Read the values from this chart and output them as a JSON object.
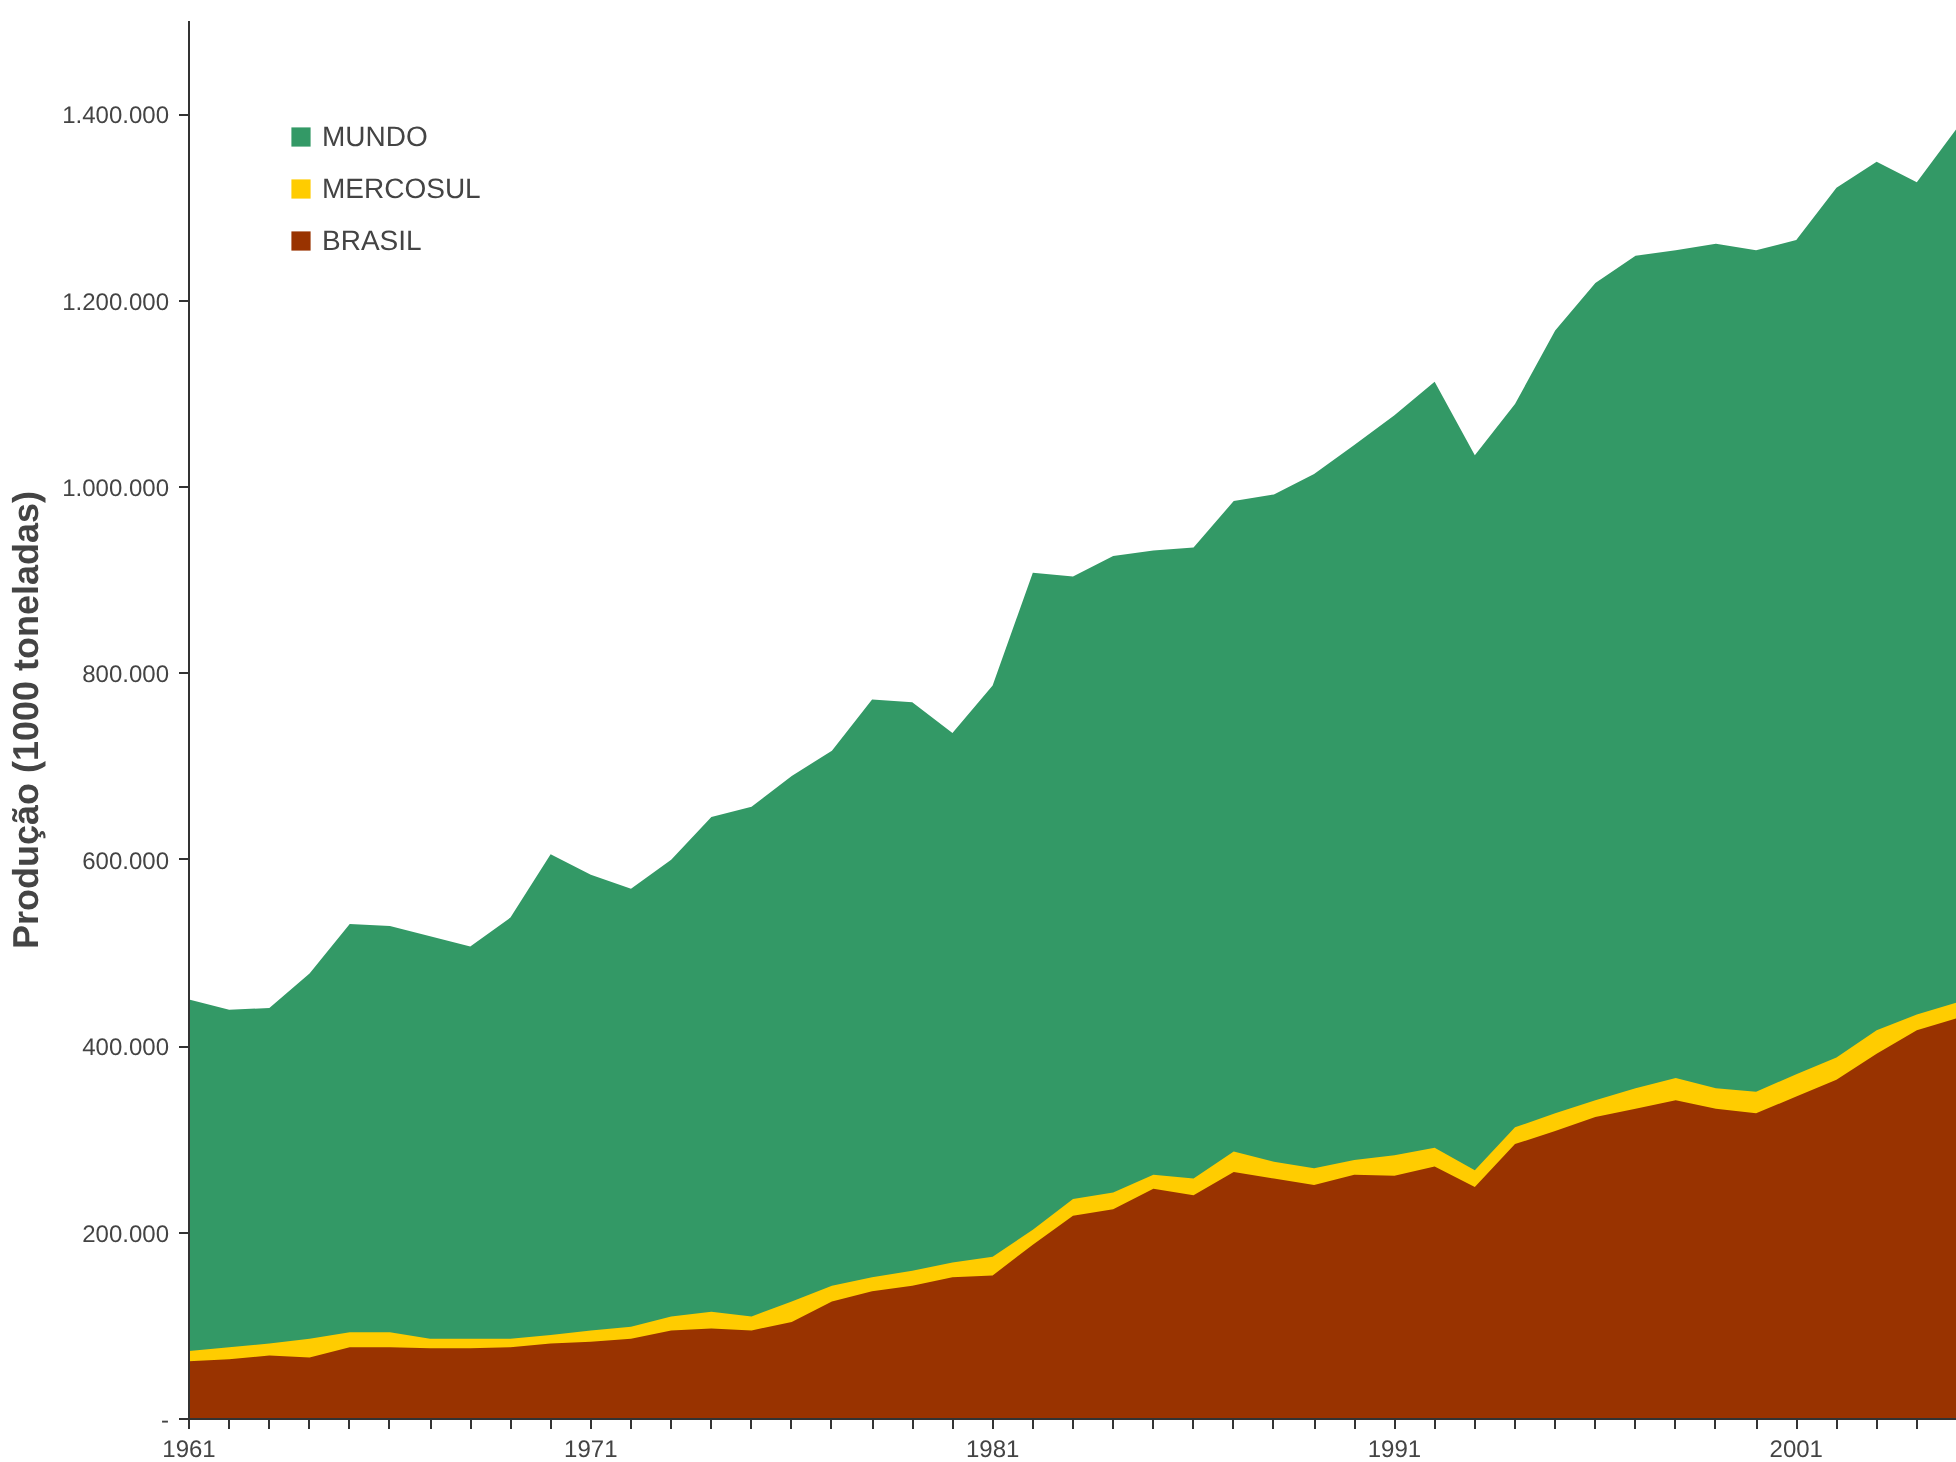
{
  "chart_data": {
    "type": "area",
    "ylabel": "Produção (1000 toneladas)",
    "x": [
      1961,
      1962,
      1963,
      1964,
      1965,
      1966,
      1967,
      1968,
      1969,
      1970,
      1971,
      1972,
      1973,
      1974,
      1975,
      1976,
      1977,
      1978,
      1979,
      1980,
      1981,
      1982,
      1983,
      1984,
      1985,
      1986,
      1987,
      1988,
      1989,
      1990,
      1991,
      1992,
      1993,
      1994,
      1995,
      1996,
      1997,
      1998,
      1999,
      2000,
      2001,
      2002,
      2003,
      2004,
      2005
    ],
    "series": [
      {
        "name": "MUNDO",
        "color": "#339966",
        "values": [
          450000,
          439000,
          441000,
          478000,
          531000,
          529000,
          518000,
          507000,
          538000,
          606000,
          584000,
          569000,
          600000,
          646000,
          657000,
          690000,
          717000,
          772000,
          769000,
          736000,
          787000,
          908000,
          904000,
          926000,
          932000,
          935000,
          985000,
          992000,
          1014000,
          1045000,
          1077000,
          1113000,
          1034000,
          1089000,
          1168000,
          1219000,
          1248000,
          1254000,
          1261000,
          1254000,
          1265000,
          1321000,
          1349000,
          1327000,
          1385000
        ]
      },
      {
        "name": "MERCOSUL",
        "color": "#ffcc00",
        "values": [
          73000,
          77000,
          81000,
          86000,
          93000,
          93000,
          86000,
          86000,
          86000,
          90000,
          95000,
          99000,
          110000,
          115000,
          110000,
          126000,
          143000,
          152000,
          159000,
          168000,
          174000,
          203000,
          236000,
          243000,
          262000,
          258000,
          287000,
          276000,
          269000,
          278000,
          283000,
          291000,
          267000,
          313000,
          328000,
          342000,
          355000,
          366000,
          355000,
          351000,
          370000,
          388000,
          417000,
          434000,
          447000
        ]
      },
      {
        "name": "BRASIL",
        "color": "#993300",
        "values": [
          62000,
          64000,
          68000,
          66000,
          77000,
          77000,
          76000,
          76000,
          77000,
          81000,
          83000,
          86000,
          95000,
          97000,
          95000,
          104000,
          126000,
          137000,
          143000,
          152000,
          154000,
          187000,
          218000,
          225000,
          247000,
          240000,
          265000,
          258000,
          251000,
          262000,
          261000,
          271000,
          249000,
          295000,
          309000,
          324000,
          333000,
          342000,
          333000,
          328000,
          346000,
          364000,
          392000,
          417000,
          430000
        ]
      }
    ],
    "xlim": [
      1961,
      2005
    ],
    "xticks": [
      1961,
      {
        "value": 1962,
        "label": null
      },
      {
        "value": 1963,
        "label": null
      },
      {
        "value": 1964,
        "label": null
      },
      {
        "value": 1965,
        "label": null
      },
      {
        "value": 1966,
        "label": null
      },
      {
        "value": 1967,
        "label": null
      },
      {
        "value": 1968,
        "label": null
      },
      {
        "value": 1969,
        "label": null
      },
      {
        "value": 1970,
        "label": null
      },
      1971,
      {
        "value": 1972,
        "label": null
      },
      {
        "value": 1973,
        "label": null
      },
      {
        "value": 1974,
        "label": null
      },
      {
        "value": 1975,
        "label": null
      },
      {
        "value": 1976,
        "label": null
      },
      {
        "value": 1977,
        "label": null
      },
      {
        "value": 1978,
        "label": null
      },
      {
        "value": 1979,
        "label": null
      },
      {
        "value": 1980,
        "label": null
      },
      1981,
      {
        "value": 1982,
        "label": null
      },
      {
        "value": 1983,
        "label": null
      },
      {
        "value": 1984,
        "label": null
      },
      {
        "value": 1985,
        "label": null
      },
      {
        "value": 1986,
        "label": null
      },
      {
        "value": 1987,
        "label": null
      },
      {
        "value": 1988,
        "label": null
      },
      {
        "value": 1989,
        "label": null
      },
      {
        "value": 1990,
        "label": null
      },
      1991,
      {
        "value": 1992,
        "label": null
      },
      {
        "value": 1993,
        "label": null
      },
      {
        "value": 1994,
        "label": null
      },
      {
        "value": 1995,
        "label": null
      },
      {
        "value": 1996,
        "label": null
      },
      {
        "value": 1997,
        "label": null
      },
      {
        "value": 1998,
        "label": null
      },
      {
        "value": 1999,
        "label": null
      },
      {
        "value": 2000,
        "label": null
      },
      2001,
      {
        "value": 2002,
        "label": null
      },
      {
        "value": 2003,
        "label": null
      },
      {
        "value": 2004,
        "label": null
      },
      {
        "value": 2005,
        "label": null
      }
    ],
    "ylim": [
      0,
      1500000
    ],
    "yticks": [
      {
        "value": 0,
        "label": "-"
      },
      {
        "value": 200000,
        "label": "200.000"
      },
      {
        "value": 400000,
        "label": "400.000"
      },
      {
        "value": 600000,
        "label": "600.000"
      },
      {
        "value": 800000,
        "label": "800.000"
      },
      {
        "value": 1000000,
        "label": "1.000.000"
      },
      {
        "value": 1200000,
        "label": "1.200.000"
      },
      {
        "value": 1400000,
        "label": "1.400.000"
      }
    ],
    "grid": false,
    "legend": "top left"
  }
}
